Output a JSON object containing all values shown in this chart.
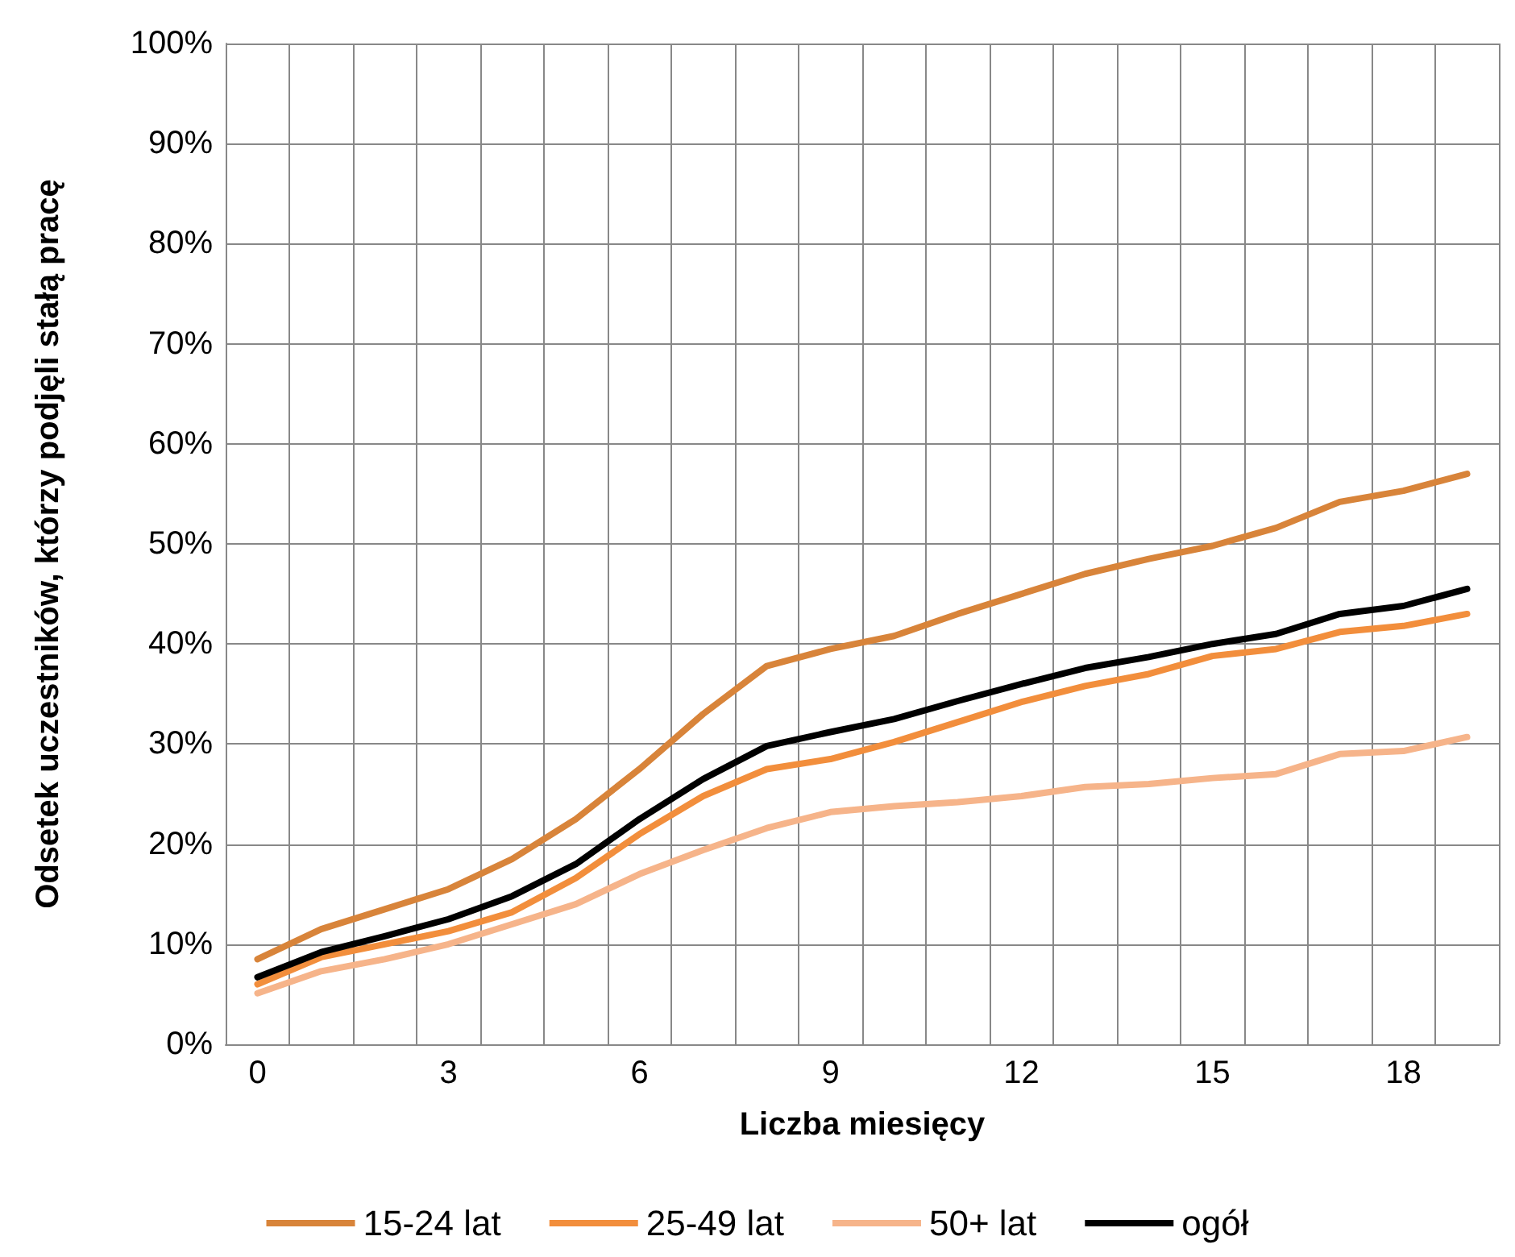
{
  "chart_data": {
    "type": "line",
    "xlabel": "Liczba miesięcy",
    "ylabel": "Odsetek uczestników, którzy podjęli stałą pracę",
    "categories": [
      "0",
      null,
      null,
      "3",
      null,
      null,
      "6",
      null,
      null,
      "9",
      null,
      null,
      "12",
      null,
      null,
      "15",
      null,
      null,
      "18",
      null
    ],
    "series": [
      {
        "name": "15-24 lat",
        "color": "#d8843a",
        "values": [
          8.5,
          11.5,
          13.5,
          15.5,
          18.5,
          22.5,
          27.5,
          33,
          37.8,
          39.5,
          40.8,
          43,
          45,
          47,
          48.5,
          49.8,
          51.6,
          54.2,
          55.3,
          57
        ]
      },
      {
        "name": "25-49 lat",
        "color": "#f28e3c",
        "values": [
          6,
          8.7,
          10,
          11.3,
          13.2,
          16.6,
          21,
          24.8,
          27.5,
          28.5,
          30.2,
          32.2,
          34.2,
          35.8,
          37,
          38.8,
          39.5,
          41.2,
          41.8,
          43
        ]
      },
      {
        "name": "50+ lat",
        "color": "#f6b48a",
        "values": [
          5.1,
          7.3,
          8.5,
          10,
          12,
          14,
          17,
          19.4,
          21.6,
          23.2,
          23.8,
          24.2,
          24.8,
          25.7,
          26,
          26.6,
          27,
          29,
          29.3,
          30.7
        ]
      },
      {
        "name": "ogół",
        "color": "#000000",
        "values": [
          6.7,
          9.2,
          10.8,
          12.5,
          14.8,
          18,
          22.5,
          26.5,
          29.8,
          31.2,
          32.5,
          34.3,
          36,
          37.6,
          38.7,
          40,
          41,
          43,
          43.8,
          45.5
        ]
      }
    ],
    "ylim": [
      0,
      100
    ],
    "yticks": [
      {
        "value": 0,
        "label": "0%"
      },
      {
        "value": 10,
        "label": "10%"
      },
      {
        "value": 20,
        "label": "20%"
      },
      {
        "value": 30,
        "label": "30%"
      },
      {
        "value": 40,
        "label": "40%"
      },
      {
        "value": 50,
        "label": "50%"
      },
      {
        "value": 60,
        "label": "60%"
      },
      {
        "value": 70,
        "label": "70%"
      },
      {
        "value": 80,
        "label": "80%"
      },
      {
        "value": 90,
        "label": "90%"
      },
      {
        "value": 100,
        "label": "100%"
      }
    ],
    "grid": true,
    "legend": "bottom",
    "marker": "none",
    "line_style": "solid"
  }
}
